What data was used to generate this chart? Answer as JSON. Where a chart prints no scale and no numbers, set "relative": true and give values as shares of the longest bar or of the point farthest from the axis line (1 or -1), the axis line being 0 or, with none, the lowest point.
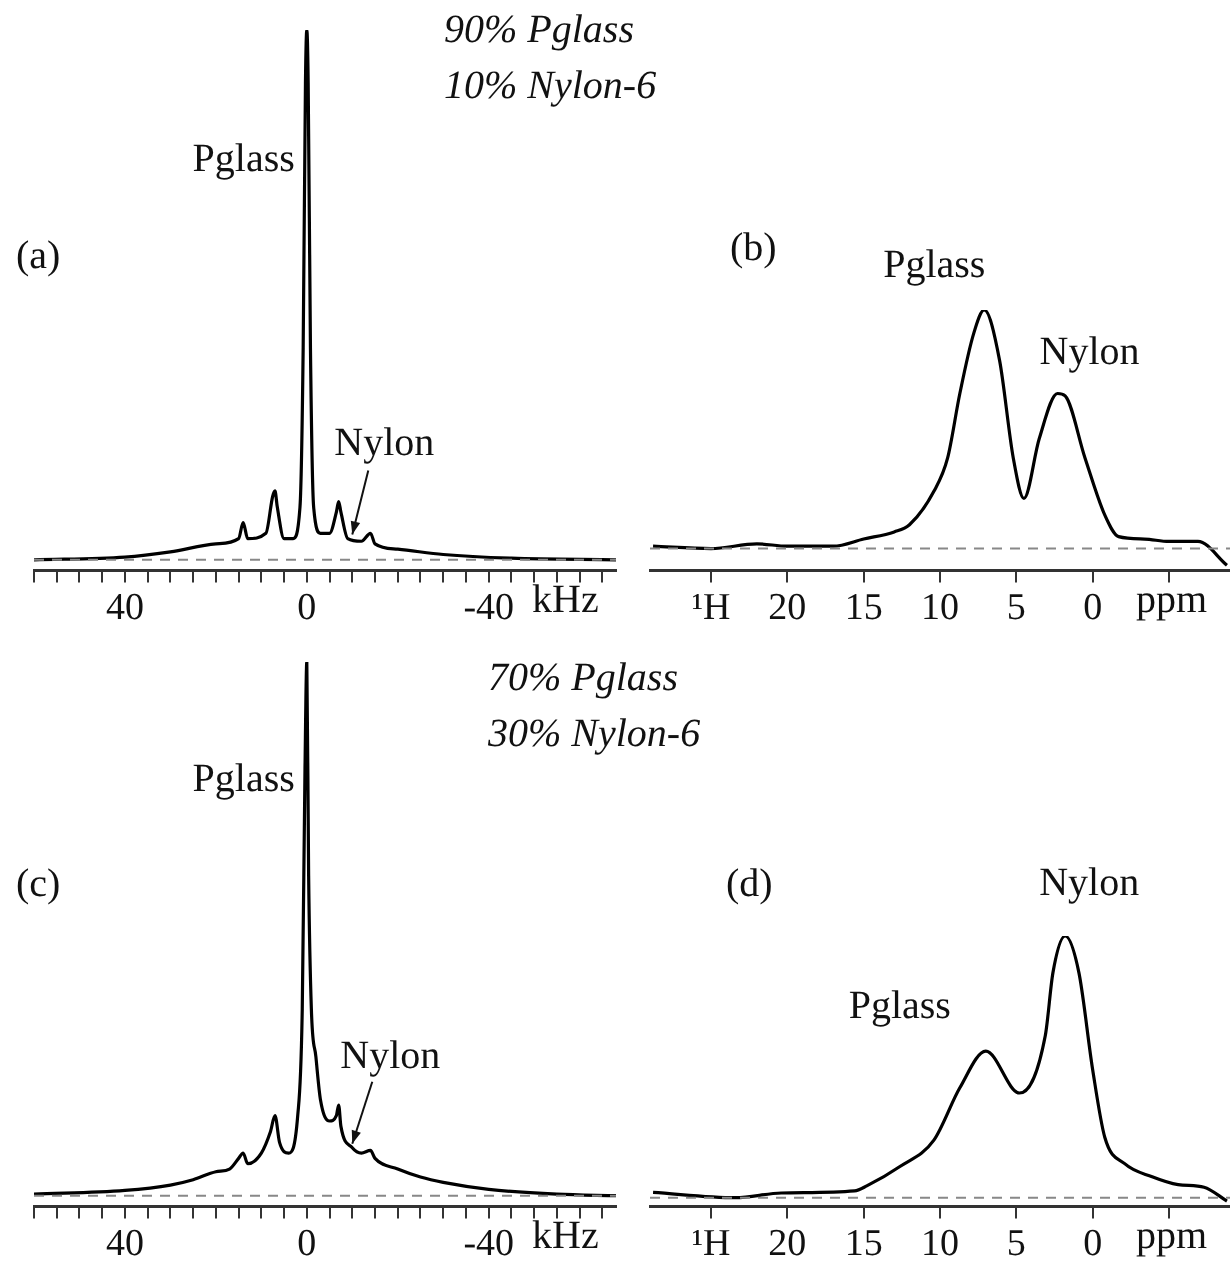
{
  "chart_data": [
    {
      "type": "line",
      "relative": true,
      "marker": "none",
      "line_style": "solid",
      "xlabel": "kHz",
      "x": [
        60,
        40,
        30,
        20,
        15,
        14,
        13,
        9,
        7.5,
        7,
        6.5,
        5,
        3,
        1.5,
        0.8,
        0.3,
        0,
        -0.3,
        -0.8,
        -1.5,
        -3,
        -5,
        -6.5,
        -7,
        -7.5,
        -9,
        -12,
        -14,
        -15,
        -20,
        -30,
        -45,
        -68
      ],
      "series": [
        {
          "color": "#000000",
          "values": [
            0,
            0.005,
            0.015,
            0.03,
            0.04,
            0.07,
            0.04,
            0.05,
            0.12,
            0.13,
            0.1,
            0.04,
            0.04,
            0.1,
            0.4,
            0.9,
            1,
            0.9,
            0.4,
            0.1,
            0.05,
            0.05,
            0.09,
            0.11,
            0.09,
            0.04,
            0.035,
            0.05,
            0.03,
            0.02,
            0.01,
            0.003,
            0
          ]
        }
      ],
      "xlim": [
        60,
        -68
      ],
      "xticks": [
        {
          "value": 60,
          "label": null
        },
        {
          "value": 55,
          "label": null
        },
        {
          "value": 50,
          "label": null
        },
        {
          "value": 45,
          "label": null
        },
        40,
        {
          "value": 35,
          "label": null
        },
        {
          "value": 30,
          "label": null
        },
        {
          "value": 25,
          "label": null
        },
        {
          "value": 20,
          "label": null
        },
        {
          "value": 15,
          "label": null
        },
        {
          "value": 10,
          "label": null
        },
        {
          "value": 5,
          "label": null
        },
        0,
        {
          "value": -5,
          "label": null
        },
        {
          "value": -10,
          "label": null
        },
        {
          "value": -15,
          "label": null
        },
        {
          "value": -20,
          "label": null
        },
        {
          "value": -25,
          "label": null
        },
        {
          "value": -30,
          "label": null
        },
        {
          "value": -35,
          "label": null
        },
        -40,
        {
          "value": -45,
          "label": null
        },
        {
          "value": -50,
          "label": null
        },
        {
          "value": -55,
          "label": null
        },
        {
          "value": -60,
          "label": null
        },
        {
          "value": -65,
          "label": null
        }
      ],
      "ref_lines": [
        {
          "axis": "y",
          "value": 0,
          "color": "#888888",
          "line_style": "dashed"
        }
      ],
      "annotations": [
        "(a)",
        "90% Pglass",
        "10% Nylon-6",
        {
          "text": "Pglass",
          "x": 0,
          "y": 1
        },
        {
          "text": "Nylon",
          "x": -10,
          "y": 0.04
        }
      ]
    },
    {
      "type": "line",
      "relative": true,
      "marker": "none",
      "line_style": "solid",
      "xlabel": "ppm",
      "x": [
        28.8,
        25,
        22,
        20,
        17,
        15,
        13,
        12,
        10.4,
        9.5,
        8.7,
        7.8,
        7.1,
        6.1,
        5.2,
        4.5,
        3.5,
        2.3,
        1.8,
        0.5,
        -0.8,
        -1.7,
        -3.4,
        -5,
        -6.9,
        -8.8
      ],
      "series": [
        {
          "color": "#000000",
          "values": [
            0.01,
            0,
            0.02,
            0.01,
            0.01,
            0.04,
            0.07,
            0.1,
            0.24,
            0.38,
            0.65,
            0.9,
            1,
            0.79,
            0.38,
            0.21,
            0.46,
            0.65,
            0.64,
            0.38,
            0.14,
            0.05,
            0.04,
            0.03,
            0.03,
            -0.07
          ]
        }
      ],
      "xlim": [
        29,
        -9
      ],
      "xticks": [
        {
          "value": 25,
          "label": "¹H"
        },
        20,
        15,
        10,
        5,
        0,
        {
          "value": -5,
          "label": null
        }
      ],
      "ref_lines": [
        {
          "axis": "y",
          "value": 0,
          "color": "#888888",
          "line_style": "dashed"
        }
      ],
      "annotations": [
        "(b)",
        {
          "text": "Pglass",
          "x": 7.1,
          "y": 1
        },
        {
          "text": "Nylon",
          "x": 2.3,
          "y": 0.65
        }
      ]
    },
    {
      "type": "line",
      "relative": true,
      "marker": "none",
      "line_style": "solid",
      "xlabel": "kHz",
      "x": [
        60,
        40,
        30,
        25,
        20,
        17,
        15,
        14,
        13,
        10,
        8,
        7,
        6,
        4,
        2,
        1,
        0.4,
        0,
        -0.4,
        -1,
        -2,
        -3,
        -5,
        -6.5,
        -7,
        -7.5,
        -10,
        -12,
        -14,
        -15,
        -20,
        -25,
        -30,
        -40,
        -55,
        -68
      ],
      "series": [
        {
          "color": "#000000",
          "values": [
            0.003,
            0.01,
            0.02,
            0.03,
            0.045,
            0.05,
            0.07,
            0.08,
            0.06,
            0.08,
            0.12,
            0.15,
            0.1,
            0.08,
            0.15,
            0.35,
            0.8,
            1,
            0.6,
            0.35,
            0.26,
            0.18,
            0.14,
            0.15,
            0.17,
            0.13,
            0.09,
            0.08,
            0.085,
            0.07,
            0.05,
            0.035,
            0.025,
            0.012,
            0.003,
            0
          ]
        }
      ],
      "xlim": [
        60,
        -68
      ],
      "xticks": [
        {
          "value": 60,
          "label": null
        },
        {
          "value": 55,
          "label": null
        },
        {
          "value": 50,
          "label": null
        },
        {
          "value": 45,
          "label": null
        },
        40,
        {
          "value": 35,
          "label": null
        },
        {
          "value": 30,
          "label": null
        },
        {
          "value": 25,
          "label": null
        },
        {
          "value": 20,
          "label": null
        },
        {
          "value": 15,
          "label": null
        },
        {
          "value": 10,
          "label": null
        },
        {
          "value": 5,
          "label": null
        },
        0,
        {
          "value": -5,
          "label": null
        },
        {
          "value": -10,
          "label": null
        },
        {
          "value": -15,
          "label": null
        },
        {
          "value": -20,
          "label": null
        },
        {
          "value": -25,
          "label": null
        },
        {
          "value": -30,
          "label": null
        },
        {
          "value": -35,
          "label": null
        },
        -40,
        {
          "value": -45,
          "label": null
        },
        {
          "value": -50,
          "label": null
        },
        {
          "value": -55,
          "label": null
        },
        {
          "value": -60,
          "label": null
        },
        {
          "value": -65,
          "label": null
        }
      ],
      "ref_lines": [
        {
          "axis": "y",
          "value": 0,
          "color": "#888888",
          "line_style": "dashed"
        }
      ],
      "annotations": [
        "(c)",
        "70% Pglass",
        "30% Nylon-6",
        {
          "text": "Pglass",
          "x": 0,
          "y": 1
        },
        {
          "text": "Nylon",
          "x": -10,
          "y": 0.09
        }
      ]
    },
    {
      "type": "line",
      "relative": true,
      "marker": "none",
      "line_style": "solid",
      "xlabel": "ppm",
      "x": [
        28.8,
        23.4,
        20.4,
        15.6,
        14.8,
        12.6,
        10.4,
        8.7,
        7,
        4.8,
        3.1,
        2.6,
        1.8,
        0.9,
        0,
        -0.8,
        -2.1,
        -3.9,
        -5.6,
        -7.3,
        -8.8
      ],
      "series": [
        {
          "color": "#000000",
          "values": [
            0.02,
            0,
            0.018,
            0.026,
            0.045,
            0.12,
            0.22,
            0.42,
            0.56,
            0.4,
            0.62,
            0.86,
            1,
            0.86,
            0.49,
            0.23,
            0.13,
            0.08,
            0.05,
            0.04,
            -0.013
          ]
        }
      ],
      "xlim": [
        29,
        -9
      ],
      "xticks": [
        {
          "value": 25,
          "label": "¹H"
        },
        20,
        15,
        10,
        5,
        0,
        {
          "value": -5,
          "label": null
        }
      ],
      "ref_lines": [
        {
          "axis": "y",
          "value": 0,
          "color": "#888888",
          "line_style": "dashed"
        }
      ],
      "annotations": [
        "(d)",
        {
          "text": "Nylon",
          "x": 1.8,
          "y": 1
        },
        {
          "text": "Pglass",
          "x": 7,
          "y": 0.56
        }
      ]
    }
  ]
}
